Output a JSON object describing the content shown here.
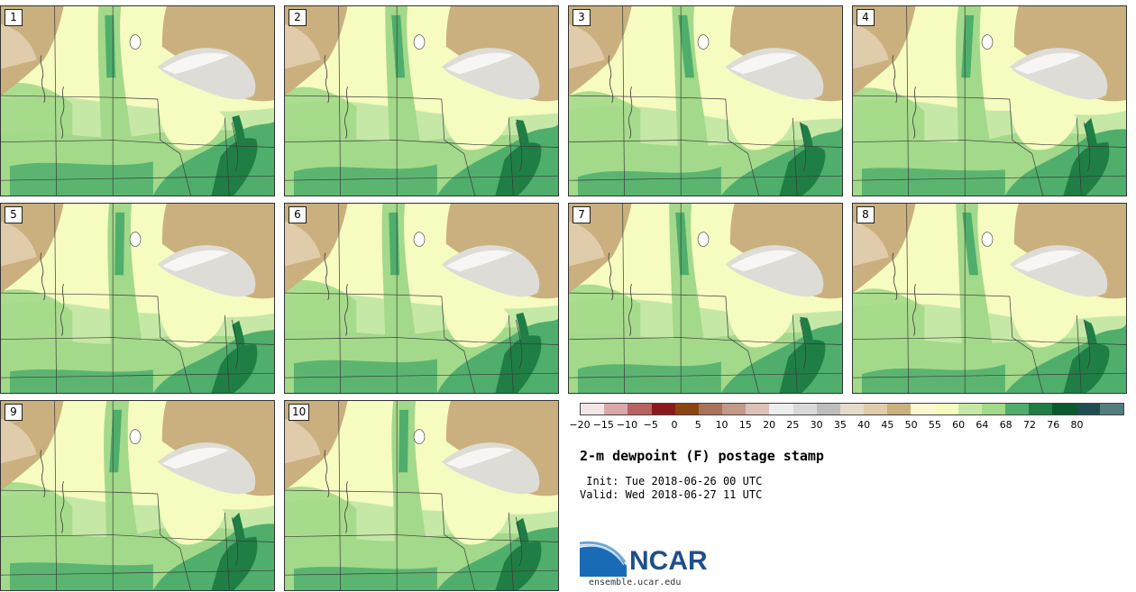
{
  "panels": [
    "1",
    "2",
    "3",
    "4",
    "5",
    "6",
    "7",
    "8",
    "9",
    "10"
  ],
  "colorbar": {
    "colors": [
      "#f3e6e6",
      "#d9a9a9",
      "#b96262",
      "#8b1a1a",
      "#8b4513",
      "#a87358",
      "#c19987",
      "#dcc2b7",
      "#ededed",
      "#d9d9d9",
      "#bdbdbd",
      "#e3ddc9",
      "#e0ccaa",
      "#c9b07e",
      "#fbf7d0",
      "#f6fbc0",
      "#c6e8a6",
      "#a3d98a",
      "#4fae6c",
      "#1f7e44",
      "#0b5a2c",
      "#1e4d52",
      "#527e7e"
    ],
    "labels": [
      "−20",
      "−15",
      "−10",
      "−5",
      "0",
      "5",
      "10",
      "15",
      "20",
      "25",
      "30",
      "35",
      "40",
      "45",
      "50",
      "55",
      "60",
      "64",
      "68",
      "72",
      "76",
      "80"
    ]
  },
  "title": "2-m dewpoint (F) postage stamp",
  "init_line": " Init: Tue 2018-06-26 00 UTC",
  "valid_line": "Valid: Wed 2018-06-27 11 UTC",
  "logo_text": "NCAR",
  "url": "ensemble.ucar.edu",
  "map_colors": {
    "pale": "#f6fbc0",
    "light_green": "#c6e8a6",
    "mid_green": "#a3d98a",
    "green": "#4fae6c",
    "dark_green": "#1f7e44",
    "tan": "#c9b07e",
    "light_tan": "#e0ccaa",
    "gray": "#dedcd6",
    "water": "#ffffff"
  }
}
